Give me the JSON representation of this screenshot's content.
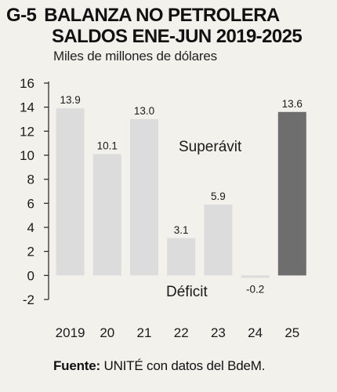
{
  "title": {
    "code": "G-5",
    "line1": "BALANZA NO PETROLERA",
    "line2": "SALDOS ENE-JUN 2019-2025"
  },
  "subtitle": "Miles de millones de dólares",
  "source": {
    "label": "Fuente:",
    "text": " UNITÉ con datos del BdeM."
  },
  "colors": {
    "background": "#f2f1ec",
    "bar": "#dcdcdc",
    "bar_highlight": "#6e6e6e",
    "text": "#1a1a1a"
  },
  "chart_data": {
    "type": "bar",
    "categories": [
      "2019",
      "20",
      "21",
      "22",
      "23",
      "24",
      "25"
    ],
    "values": [
      13.9,
      10.1,
      13.0,
      3.1,
      5.9,
      -0.2,
      13.6
    ],
    "value_labels": [
      "13.9",
      "10.1",
      "13.0",
      "3.1",
      "5.9",
      "-0.2",
      "13.6"
    ],
    "highlight_index": 6,
    "ylim": [
      -2,
      16
    ],
    "yticks": [
      -2,
      0,
      2,
      4,
      6,
      8,
      10,
      12,
      14,
      16
    ],
    "annotations": [
      "Superávit",
      "Déficit"
    ],
    "grid": false
  }
}
